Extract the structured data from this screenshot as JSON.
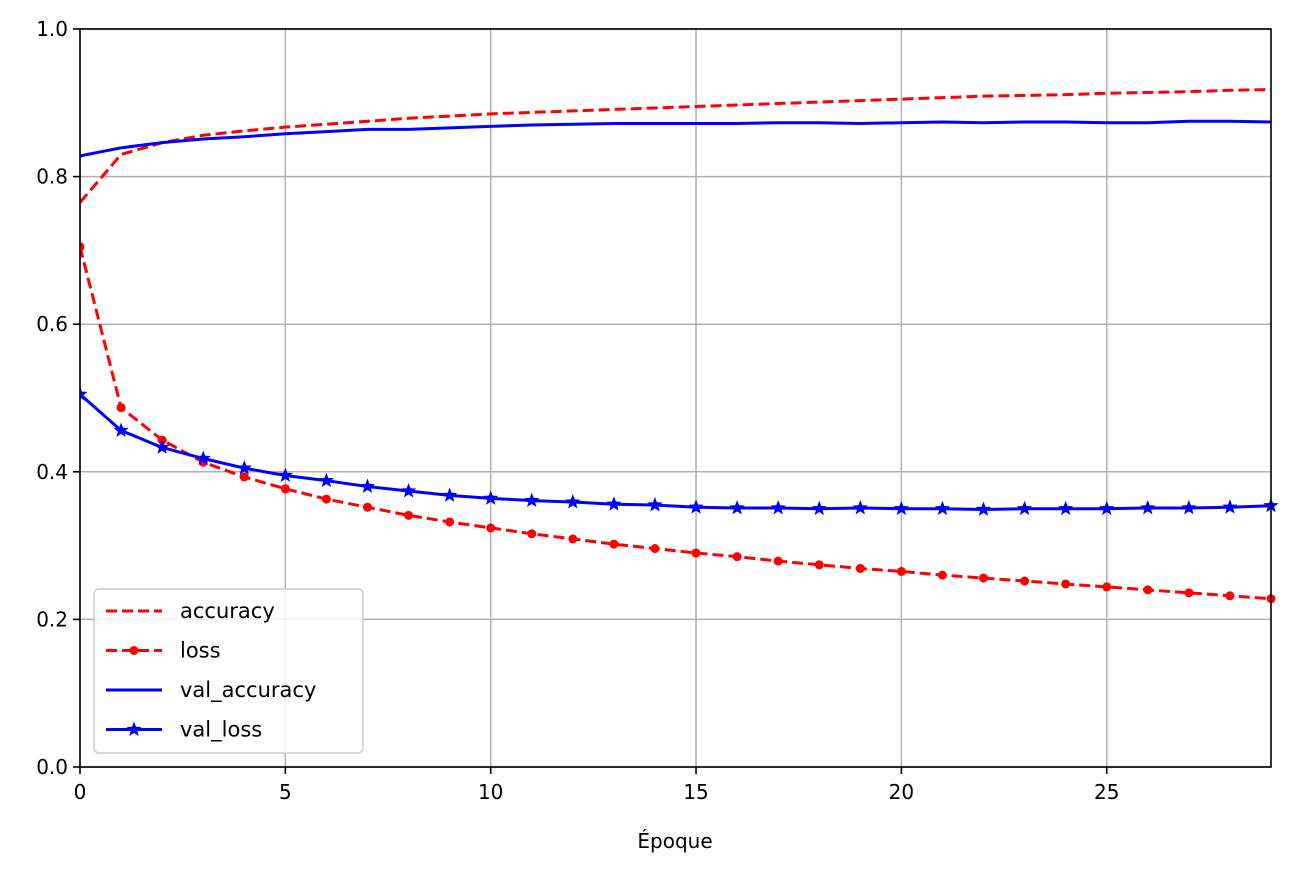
{
  "chart_data": {
    "type": "line",
    "title": "",
    "xlabel": "Époque",
    "ylabel": "",
    "xlim": [
      0,
      29
    ],
    "ylim": [
      0,
      1
    ],
    "xticks": [
      0,
      5,
      10,
      15,
      20,
      25
    ],
    "yticks": [
      0.0,
      0.2,
      0.4,
      0.6,
      0.8,
      1.0
    ],
    "xtick_labels": [
      "0",
      "5",
      "10",
      "15",
      "20",
      "25"
    ],
    "ytick_labels": [
      "0.0",
      "0.2",
      "0.4",
      "0.6",
      "0.8",
      "1.0"
    ],
    "grid": true,
    "legend_position": "lower-left",
    "x": [
      0,
      1,
      2,
      3,
      4,
      5,
      6,
      7,
      8,
      9,
      10,
      11,
      12,
      13,
      14,
      15,
      16,
      17,
      18,
      19,
      20,
      21,
      22,
      23,
      24,
      25,
      26,
      27,
      28,
      29
    ],
    "series": [
      {
        "name": "accuracy",
        "color": "#ff0000",
        "style": "dashed",
        "marker": "none",
        "values": [
          0.765,
          0.83,
          0.846,
          0.856,
          0.862,
          0.867,
          0.871,
          0.875,
          0.879,
          0.882,
          0.885,
          0.887,
          0.889,
          0.891,
          0.893,
          0.895,
          0.897,
          0.899,
          0.901,
          0.903,
          0.905,
          0.907,
          0.909,
          0.91,
          0.911,
          0.913,
          0.914,
          0.915,
          0.917,
          0.918
        ]
      },
      {
        "name": "loss",
        "color": "#ff0000",
        "style": "dashed",
        "marker": "dot",
        "values": [
          0.705,
          0.487,
          0.443,
          0.413,
          0.393,
          0.377,
          0.363,
          0.352,
          0.341,
          0.332,
          0.324,
          0.316,
          0.309,
          0.302,
          0.296,
          0.29,
          0.285,
          0.279,
          0.274,
          0.269,
          0.265,
          0.26,
          0.256,
          0.252,
          0.248,
          0.244,
          0.24,
          0.236,
          0.232,
          0.228
        ]
      },
      {
        "name": "val_accuracy",
        "color": "#0000ff",
        "style": "solid",
        "marker": "none",
        "values": [
          0.828,
          0.839,
          0.846,
          0.851,
          0.854,
          0.858,
          0.861,
          0.864,
          0.864,
          0.866,
          0.868,
          0.87,
          0.871,
          0.872,
          0.872,
          0.872,
          0.872,
          0.873,
          0.873,
          0.872,
          0.873,
          0.874,
          0.873,
          0.874,
          0.874,
          0.873,
          0.873,
          0.875,
          0.875,
          0.874
        ]
      },
      {
        "name": "val_loss",
        "color": "#0000ff",
        "style": "solid",
        "marker": "star",
        "values": [
          0.505,
          0.456,
          0.433,
          0.418,
          0.405,
          0.395,
          0.388,
          0.38,
          0.374,
          0.368,
          0.364,
          0.361,
          0.359,
          0.356,
          0.355,
          0.352,
          0.351,
          0.351,
          0.35,
          0.351,
          0.35,
          0.35,
          0.349,
          0.35,
          0.35,
          0.35,
          0.351,
          0.351,
          0.352,
          0.354
        ]
      }
    ]
  }
}
